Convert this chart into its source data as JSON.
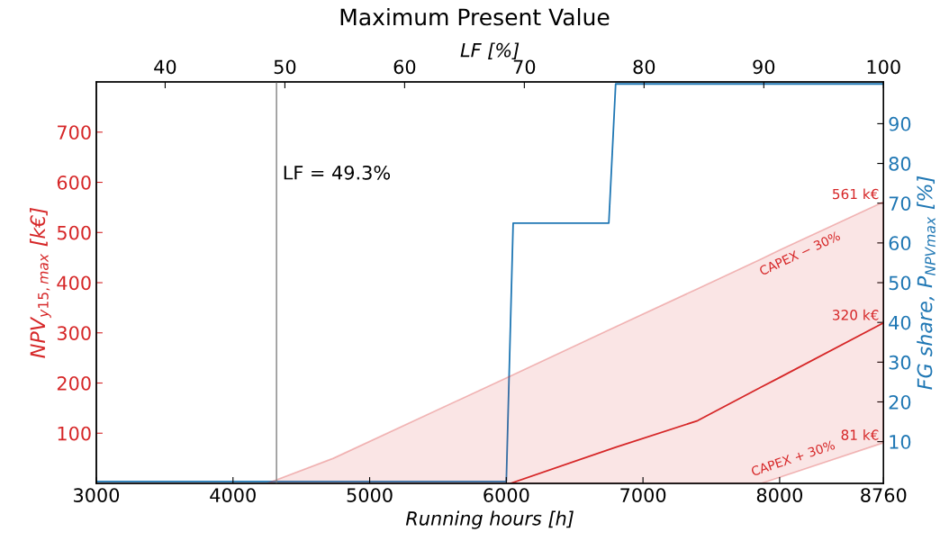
{
  "chart_data": {
    "type": "line",
    "title": "Maximum Present Value",
    "xlabel": "Running hours [h]",
    "ylabel": "NPV$_{y15,max}$ [k€]",
    "y2label": "FG share, P$_{NPVmax}$ [%]",
    "x2label": "LF [%]",
    "xlim": [
      3000,
      8760
    ],
    "xticks": [
      3000,
      4000,
      5000,
      6000,
      7000,
      8000,
      8760
    ],
    "ylim": [
      0,
      800
    ],
    "yticks": [
      100,
      200,
      300,
      400,
      500,
      600,
      700
    ],
    "y2lim": [
      -0.5,
      100.5
    ],
    "y2ticks": [
      10,
      20,
      30,
      40,
      50,
      60,
      70,
      80,
      90
    ],
    "x2lim": [
      34.25,
      100
    ],
    "x2ticks": [
      40,
      50,
      60,
      70,
      80,
      90,
      100
    ],
    "series": [
      {
        "color": "#d62728",
        "x": [
          3000,
          4250,
          4734,
          6030,
          6800,
          7400,
          7865,
          8000,
          8760
        ],
        "values": [
          null,
          null,
          null,
          0,
          72,
          125,
          192,
          211,
          320
        ],
        "lower": [
          0,
          0,
          0,
          0,
          0,
          0,
          0,
          12,
          81
        ],
        "upper": [
          0,
          0,
          50,
          214,
          312,
          388,
          447,
          465,
          561
        ]
      },
      {
        "color": "#1f77b4",
        "axis": "y2",
        "x": [
          3000,
          6000,
          6050,
          6750,
          6800,
          8760
        ],
        "values": [
          0,
          0,
          65,
          65,
          100,
          100
        ]
      }
    ],
    "ref_lines": [
      {
        "axis": "x2",
        "value": 49.3,
        "label": "LF = 49.3%",
        "color": "#808080"
      }
    ],
    "annotations": [
      {
        "text": "561 k€",
        "x": 8760,
        "y": 561
      },
      {
        "text": "320 k€",
        "x": 8760,
        "y": 320
      },
      {
        "text": "81 k€",
        "x": 8760,
        "y": 81
      },
      {
        "text": "CAPEX − 30%",
        "x": 8150,
        "y": 484
      },
      {
        "text": "CAPEX + 30%",
        "x": 8100,
        "y": 21
      }
    ],
    "grid": false,
    "legend": false
  }
}
